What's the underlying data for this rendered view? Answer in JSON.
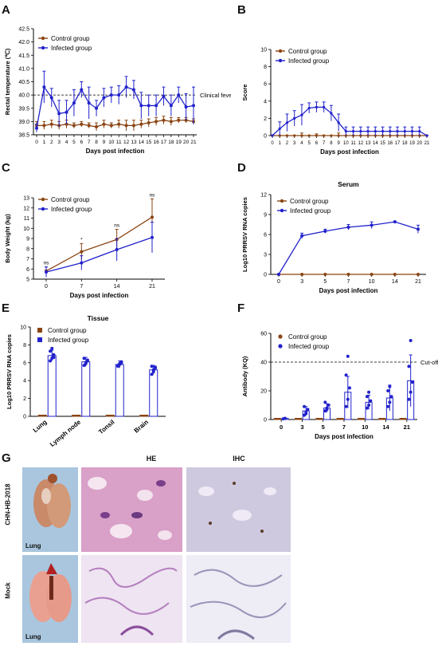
{
  "figure": {
    "panel_labels": [
      "A",
      "B",
      "C",
      "D",
      "E",
      "F",
      "G"
    ]
  },
  "colors": {
    "control": "#8B4513",
    "infected": "#2222CC",
    "control_bar": "#b5651d"
  },
  "chart_data": [
    {
      "id": "A",
      "type": "line",
      "xlabel": "Days post infection",
      "ylabel": "Rectal temperature (℃)",
      "ylim": [
        38.5,
        42.5
      ],
      "yticks": [
        "38.5",
        "39.0",
        "39.5",
        "40.0",
        "40.5",
        "41.0",
        "41.5",
        "42.0",
        "42.5"
      ],
      "x": [
        0,
        1,
        2,
        3,
        4,
        5,
        6,
        7,
        8,
        9,
        10,
        11,
        12,
        13,
        14,
        15,
        16,
        17,
        18,
        19,
        20,
        21
      ],
      "annotations": [
        {
          "text": "Clinical fever",
          "y": 40.0
        }
      ],
      "series": [
        {
          "name": "Control group",
          "color": "#8B4513",
          "values": [
            38.85,
            38.85,
            38.9,
            38.85,
            38.9,
            38.85,
            38.9,
            38.85,
            38.8,
            38.9,
            38.85,
            38.9,
            38.85,
            38.85,
            38.9,
            38.95,
            39.0,
            39.05,
            39.0,
            39.05,
            39.05,
            39.0
          ],
          "err": [
            0.15,
            0.15,
            0.15,
            0.15,
            0.15,
            0.1,
            0.1,
            0.1,
            0.15,
            0.15,
            0.1,
            0.15,
            0.2,
            0.2,
            0.15,
            0.15,
            0.15,
            0.15,
            0.15,
            0.1,
            0.1,
            0.1
          ]
        },
        {
          "name": "Infected group",
          "color": "#2222CC",
          "values": [
            38.75,
            40.3,
            39.9,
            39.3,
            39.35,
            39.7,
            40.2,
            39.7,
            39.5,
            39.9,
            40.0,
            40.0,
            40.3,
            40.2,
            39.6,
            39.6,
            39.6,
            39.95,
            39.6,
            40.0,
            39.55,
            39.6
          ],
          "err": [
            0.15,
            0.6,
            0.35,
            0.5,
            0.45,
            0.5,
            0.3,
            0.6,
            0.3,
            0.35,
            0.3,
            0.35,
            0.4,
            0.35,
            0.5,
            0.4,
            0.4,
            0.35,
            0.4,
            0.3,
            0.5,
            0.7
          ]
        }
      ]
    },
    {
      "id": "B",
      "type": "line",
      "xlabel": "Days post infection",
      "ylabel": "Score",
      "ylim": [
        0,
        10
      ],
      "yticks": [
        "0",
        "2",
        "4",
        "6",
        "8",
        "10"
      ],
      "x": [
        0,
        1,
        2,
        3,
        4,
        5,
        6,
        7,
        8,
        9,
        10,
        11,
        12,
        13,
        14,
        15,
        16,
        17,
        18,
        19,
        20,
        21
      ],
      "series": [
        {
          "name": "Control group",
          "color": "#8B4513",
          "values": [
            0,
            0,
            0,
            0,
            0,
            0,
            0,
            0,
            0,
            0,
            0,
            0,
            0,
            0,
            0,
            0,
            0,
            0,
            0,
            0,
            0,
            0
          ],
          "err": [
            0,
            0,
            0,
            0,
            0.3,
            0,
            0.2,
            0,
            0,
            0.3,
            0,
            0,
            0,
            0,
            0,
            0,
            0,
            0,
            0,
            0,
            0,
            0
          ]
        },
        {
          "name": "Infected group",
          "color": "#2222CC",
          "values": [
            0,
            0.8,
            1.5,
            2,
            2.4,
            3.2,
            3.3,
            3.3,
            2.6,
            1.5,
            0.5,
            0.5,
            0.5,
            0.5,
            0.5,
            0.5,
            0.5,
            0.5,
            0.5,
            0.5,
            0.5,
            0
          ],
          "err": [
            0,
            0.8,
            1.0,
            0.9,
            1.2,
            0.6,
            0.6,
            0.6,
            0.9,
            1.0,
            0.5,
            0.5,
            0.5,
            0.5,
            0.5,
            0.5,
            0.5,
            0.5,
            0.5,
            0.5,
            0.5,
            0
          ]
        }
      ]
    },
    {
      "id": "C",
      "type": "line",
      "xlabel": "Days post infection",
      "ylabel": "Body Weight (kg)",
      "ylim": [
        5,
        13
      ],
      "yticks": [
        "5",
        "6",
        "7",
        "8",
        "9",
        "10",
        "11",
        "12",
        "13"
      ],
      "x": [
        0,
        7,
        14,
        21
      ],
      "sig_labels": [
        "ns",
        "*",
        "ns",
        "ns"
      ],
      "series": [
        {
          "name": "Control group",
          "color": "#8B4513",
          "values": [
            5.8,
            7.7,
            8.9,
            11.1
          ],
          "err": [
            0.4,
            0.8,
            1.0,
            1.8
          ]
        },
        {
          "name": "Infected group",
          "color": "#2222CC",
          "values": [
            5.7,
            6.6,
            7.9,
            9.1
          ],
          "err": [
            0.5,
            0.7,
            1.1,
            1.5
          ]
        }
      ]
    },
    {
      "id": "D",
      "type": "line",
      "title": "Serum",
      "xlabel": "Days post infection",
      "ylabel": "Log10 PRRSV RNA copies",
      "ylim": [
        0,
        12
      ],
      "yticks": [
        "0",
        "3",
        "6",
        "9",
        "12"
      ],
      "x": [
        0,
        3,
        5,
        7,
        10,
        14,
        21
      ],
      "series": [
        {
          "name": "Control group",
          "color": "#8B4513",
          "values": [
            0,
            0,
            0,
            0,
            0,
            0,
            0
          ],
          "err": [
            0,
            0,
            0,
            0,
            0,
            0,
            0
          ]
        },
        {
          "name": "Infected group",
          "color": "#2222CC",
          "values": [
            0,
            5.8,
            6.5,
            7.1,
            7.4,
            7.9,
            6.8
          ],
          "err": [
            0,
            0.4,
            0.3,
            0.4,
            0.5,
            0.1,
            0.6
          ]
        }
      ]
    },
    {
      "id": "E",
      "type": "bar",
      "title": "Tissue",
      "ylabel": "Log10 PRRSV RNA copies",
      "ylim": [
        0,
        10
      ],
      "yticks": [
        "0",
        "2",
        "4",
        "6",
        "8",
        "10"
      ],
      "categories": [
        "Lung",
        "Lymph node",
        "Tonsil",
        "Brain"
      ],
      "series": [
        {
          "name": "Control group",
          "color": "#8B4513",
          "values": [
            0,
            0,
            0,
            0
          ]
        },
        {
          "name": "Infected group",
          "color": "#2222CC",
          "values": [
            6.8,
            6.1,
            5.8,
            5.2
          ],
          "err": [
            0.6,
            0.5,
            0.4,
            0.5
          ],
          "points": [
            [
              6.2,
              6.5,
              6.9,
              7.3,
              7.6,
              6.6
            ],
            [
              5.7,
              5.9,
              6.2,
              6.5,
              6.0,
              6.3
            ],
            [
              5.6,
              5.8,
              6.0,
              5.7,
              5.9,
              6.1
            ],
            [
              4.7,
              5.0,
              5.4,
              5.6,
              5.2,
              5.5
            ]
          ]
        }
      ]
    },
    {
      "id": "F",
      "type": "bar",
      "xlabel": "Days post infection",
      "ylabel": "Antibody (KQ)",
      "ylim": [
        0,
        60
      ],
      "yticks": [
        "0",
        "20",
        "40",
        "60"
      ],
      "categories": [
        "0",
        "3",
        "5",
        "7",
        "10",
        "14",
        "21"
      ],
      "annotations": [
        {
          "text": "Cut-off",
          "y": 40
        }
      ],
      "series": [
        {
          "name": "Control group",
          "color": "#8B4513",
          "values": [
            0.5,
            0.5,
            0.5,
            0.5,
            0.5,
            0.5,
            0.5
          ]
        },
        {
          "name": "Infected group",
          "color": "#2222CC",
          "values": [
            0.5,
            6,
            8,
            19,
            12,
            15,
            27
          ],
          "err": [
            0.3,
            3,
            3,
            11,
            5,
            9,
            18
          ],
          "points": [
            [
              0.5,
              0.8
            ],
            [
              3,
              5,
              7,
              9,
              4
            ],
            [
              6,
              8,
              10,
              12,
              7
            ],
            [
              9,
              14,
              22,
              31,
              44
            ],
            [
              8,
              10,
              13,
              16,
              19
            ],
            [
              9,
              12,
              16,
              20,
              23
            ],
            [
              14,
              19,
              26,
              37,
              55
            ]
          ]
        }
      ]
    }
  ],
  "panel_g": {
    "column_headers": [
      "HE",
      "IHC"
    ],
    "row_labels": [
      "CHN-HB-2018",
      "Mock"
    ],
    "image_captions": [
      "Lung",
      "Lung"
    ]
  }
}
